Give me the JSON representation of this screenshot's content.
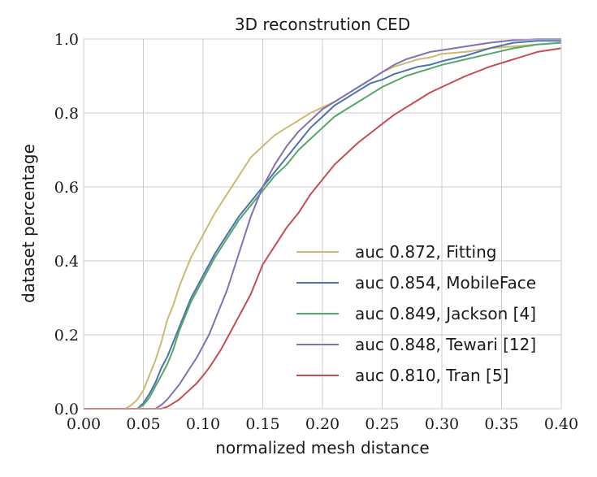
{
  "chart_data": {
    "type": "line",
    "title": "3D reconstrution CED",
    "xlabel": "normalized mesh distance",
    "ylabel": "dataset percentage",
    "xlim": [
      0.0,
      0.4
    ],
    "ylim": [
      0.0,
      1.0
    ],
    "xticks": [
      "0.00",
      "0.05",
      "0.10",
      "0.15",
      "0.20",
      "0.25",
      "0.30",
      "0.35",
      "0.40"
    ],
    "yticks": [
      "0.0",
      "0.2",
      "0.4",
      "0.6",
      "0.8",
      "1.0"
    ],
    "grid": true,
    "legend_position": "lower-right",
    "series": [
      {
        "name": "auc 0.872, Fitting",
        "color": "#ccb974",
        "x": [
          0.035,
          0.04,
          0.045,
          0.05,
          0.055,
          0.06,
          0.065,
          0.07,
          0.075,
          0.08,
          0.085,
          0.09,
          0.095,
          0.1,
          0.11,
          0.12,
          0.13,
          0.14,
          0.15,
          0.16,
          0.17,
          0.18,
          0.19,
          0.2,
          0.21,
          0.22,
          0.23,
          0.24,
          0.25,
          0.26,
          0.27,
          0.28,
          0.29,
          0.3,
          0.32,
          0.34,
          0.36,
          0.38,
          0.4
        ],
        "y": [
          0.0,
          0.01,
          0.025,
          0.05,
          0.09,
          0.13,
          0.18,
          0.24,
          0.28,
          0.33,
          0.37,
          0.41,
          0.44,
          0.47,
          0.53,
          0.58,
          0.63,
          0.68,
          0.71,
          0.74,
          0.76,
          0.78,
          0.8,
          0.815,
          0.83,
          0.85,
          0.87,
          0.89,
          0.91,
          0.925,
          0.935,
          0.945,
          0.95,
          0.96,
          0.965,
          0.975,
          0.98,
          0.985,
          0.99
        ]
      },
      {
        "name": "auc 0.854, MobileFace",
        "color": "#4c72b0",
        "x": [
          0.045,
          0.05,
          0.055,
          0.06,
          0.065,
          0.07,
          0.075,
          0.08,
          0.085,
          0.09,
          0.095,
          0.1,
          0.11,
          0.12,
          0.13,
          0.14,
          0.15,
          0.16,
          0.17,
          0.18,
          0.19,
          0.2,
          0.21,
          0.22,
          0.23,
          0.24,
          0.25,
          0.26,
          0.27,
          0.28,
          0.29,
          0.3,
          0.32,
          0.34,
          0.36,
          0.38,
          0.4
        ],
        "y": [
          0.0,
          0.015,
          0.04,
          0.07,
          0.11,
          0.14,
          0.18,
          0.22,
          0.26,
          0.3,
          0.33,
          0.36,
          0.42,
          0.47,
          0.52,
          0.56,
          0.6,
          0.64,
          0.68,
          0.72,
          0.76,
          0.79,
          0.82,
          0.84,
          0.86,
          0.88,
          0.89,
          0.905,
          0.915,
          0.925,
          0.93,
          0.94,
          0.955,
          0.975,
          0.99,
          0.995,
          0.995
        ]
      },
      {
        "name": "auc 0.849, Jackson [4]",
        "color": "#55a868",
        "x": [
          0.045,
          0.05,
          0.055,
          0.06,
          0.065,
          0.07,
          0.075,
          0.08,
          0.085,
          0.09,
          0.095,
          0.1,
          0.11,
          0.12,
          0.13,
          0.14,
          0.15,
          0.16,
          0.17,
          0.18,
          0.19,
          0.2,
          0.21,
          0.22,
          0.23,
          0.24,
          0.25,
          0.26,
          0.27,
          0.28,
          0.29,
          0.3,
          0.32,
          0.34,
          0.36,
          0.38,
          0.4
        ],
        "y": [
          0.0,
          0.01,
          0.03,
          0.06,
          0.09,
          0.12,
          0.16,
          0.21,
          0.25,
          0.29,
          0.32,
          0.35,
          0.41,
          0.46,
          0.51,
          0.55,
          0.59,
          0.63,
          0.66,
          0.7,
          0.73,
          0.76,
          0.79,
          0.81,
          0.83,
          0.85,
          0.87,
          0.885,
          0.9,
          0.91,
          0.92,
          0.93,
          0.945,
          0.96,
          0.975,
          0.985,
          0.99
        ]
      },
      {
        "name": "auc 0.848, Tewari [12]",
        "color": "#8172b2",
        "x": [
          0.06,
          0.065,
          0.07,
          0.075,
          0.08,
          0.085,
          0.09,
          0.095,
          0.1,
          0.105,
          0.11,
          0.115,
          0.12,
          0.125,
          0.13,
          0.135,
          0.14,
          0.145,
          0.15,
          0.16,
          0.17,
          0.18,
          0.19,
          0.2,
          0.21,
          0.22,
          0.23,
          0.24,
          0.25,
          0.26,
          0.27,
          0.28,
          0.29,
          0.3,
          0.32,
          0.34,
          0.36,
          0.38,
          0.4
        ],
        "y": [
          0.0,
          0.01,
          0.025,
          0.045,
          0.065,
          0.09,
          0.115,
          0.14,
          0.17,
          0.2,
          0.24,
          0.28,
          0.32,
          0.37,
          0.42,
          0.47,
          0.52,
          0.56,
          0.6,
          0.66,
          0.71,
          0.75,
          0.78,
          0.81,
          0.83,
          0.85,
          0.87,
          0.89,
          0.91,
          0.93,
          0.945,
          0.955,
          0.965,
          0.97,
          0.98,
          0.99,
          0.997,
          1.0,
          1.0
        ]
      },
      {
        "name": "auc 0.810, Tran [5]",
        "color": "#c44e52",
        "x": [
          0.065,
          0.07,
          0.075,
          0.08,
          0.085,
          0.09,
          0.095,
          0.1,
          0.105,
          0.11,
          0.115,
          0.12,
          0.125,
          0.13,
          0.135,
          0.14,
          0.145,
          0.15,
          0.16,
          0.17,
          0.18,
          0.19,
          0.2,
          0.21,
          0.22,
          0.23,
          0.24,
          0.25,
          0.26,
          0.27,
          0.28,
          0.29,
          0.3,
          0.32,
          0.34,
          0.36,
          0.38,
          0.4
        ],
        "y": [
          0.0,
          0.005,
          0.015,
          0.025,
          0.04,
          0.055,
          0.07,
          0.09,
          0.11,
          0.135,
          0.16,
          0.19,
          0.22,
          0.25,
          0.28,
          0.31,
          0.35,
          0.39,
          0.44,
          0.49,
          0.53,
          0.58,
          0.62,
          0.66,
          0.69,
          0.72,
          0.745,
          0.77,
          0.795,
          0.815,
          0.835,
          0.855,
          0.87,
          0.9,
          0.925,
          0.945,
          0.965,
          0.975
        ]
      }
    ]
  }
}
